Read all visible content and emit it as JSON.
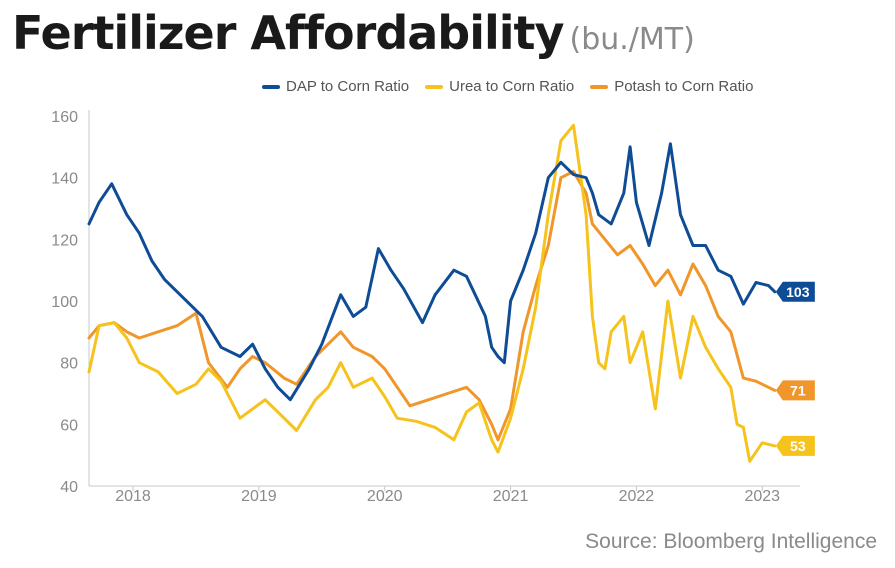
{
  "header": {
    "title": "Fertilizer Affordability",
    "subtitle": "(bu./MT)"
  },
  "source": "Source: Bloomberg Intelligence",
  "colors": {
    "dap": "#0f4c96",
    "urea": "#f5c31c",
    "potash": "#f0962a"
  },
  "chart_data": {
    "type": "line",
    "title": "Fertilizer Affordability",
    "xlabel": "",
    "ylabel": "",
    "ylim": [
      40,
      160
    ],
    "yticks": [
      40,
      60,
      80,
      100,
      120,
      140,
      160
    ],
    "xlim": [
      2017.7,
      2023.35
    ],
    "xticks": [
      {
        "value": 2018.05,
        "label": "2018"
      },
      {
        "value": 2019.05,
        "label": "2019"
      },
      {
        "value": 2020.05,
        "label": "2020"
      },
      {
        "value": 2021.05,
        "label": "2021"
      },
      {
        "value": 2022.05,
        "label": "2022"
      },
      {
        "value": 2023.05,
        "label": "2023"
      }
    ],
    "grid": false,
    "legend_position": "top",
    "series": [
      {
        "name": "DAP to Corn Ratio",
        "color": "#0f4c96",
        "end_label": "103",
        "x": [
          2017.7,
          2017.78,
          2017.88,
          2018.0,
          2018.1,
          2018.2,
          2018.3,
          2018.45,
          2018.6,
          2018.75,
          2018.9,
          2019.0,
          2019.1,
          2019.2,
          2019.3,
          2019.45,
          2019.55,
          2019.7,
          2019.8,
          2019.9,
          2020.0,
          2020.1,
          2020.2,
          2020.35,
          2020.45,
          2020.6,
          2020.7,
          2020.85,
          2020.9,
          2020.95,
          2021.0,
          2021.05,
          2021.15,
          2021.25,
          2021.35,
          2021.45,
          2021.55,
          2021.65,
          2021.7,
          2021.75,
          2021.85,
          2021.95,
          2022.0,
          2022.05,
          2022.15,
          2022.25,
          2022.32,
          2022.4,
          2022.5,
          2022.6,
          2022.7,
          2022.8,
          2022.9,
          2023.0,
          2023.1,
          2023.15
        ],
        "y": [
          125,
          132,
          138,
          128,
          122,
          113,
          107,
          101,
          95,
          85,
          82,
          86,
          78,
          72,
          68,
          78,
          86,
          102,
          95,
          98,
          117,
          110,
          104,
          93,
          102,
          110,
          108,
          95,
          85,
          82,
          80,
          100,
          110,
          122,
          140,
          145,
          141,
          140,
          135,
          128,
          125,
          135,
          150,
          132,
          118,
          135,
          151,
          128,
          118,
          118,
          110,
          108,
          99,
          106,
          105,
          103
        ]
      },
      {
        "name": "Urea to Corn Ratio",
        "color": "#f5c31c",
        "end_label": "53",
        "x": [
          2017.7,
          2017.78,
          2017.9,
          2018.0,
          2018.1,
          2018.25,
          2018.4,
          2018.55,
          2018.65,
          2018.75,
          2018.9,
          2019.0,
          2019.1,
          2019.25,
          2019.35,
          2019.5,
          2019.6,
          2019.7,
          2019.8,
          2019.95,
          2020.05,
          2020.15,
          2020.3,
          2020.45,
          2020.6,
          2020.7,
          2020.8,
          2020.9,
          2020.95,
          2021.05,
          2021.15,
          2021.25,
          2021.35,
          2021.45,
          2021.55,
          2021.65,
          2021.7,
          2021.75,
          2021.8,
          2021.85,
          2021.95,
          2022.0,
          2022.05,
          2022.1,
          2022.2,
          2022.3,
          2022.4,
          2022.5,
          2022.6,
          2022.7,
          2022.8,
          2022.85,
          2022.9,
          2022.95,
          2023.05,
          2023.15
        ],
        "y": [
          77,
          92,
          93,
          88,
          80,
          77,
          70,
          73,
          78,
          74,
          62,
          65,
          68,
          62,
          58,
          68,
          72,
          80,
          72,
          75,
          69,
          62,
          61,
          59,
          55,
          64,
          67,
          55,
          51,
          62,
          78,
          98,
          128,
          152,
          157,
          128,
          95,
          80,
          78,
          90,
          95,
          80,
          85,
          90,
          65,
          100,
          75,
          95,
          85,
          78,
          72,
          60,
          59,
          48,
          54,
          53
        ]
      },
      {
        "name": "Potash to Corn Ratio",
        "color": "#f0962a",
        "end_label": "71",
        "x": [
          2017.7,
          2017.78,
          2017.9,
          2018.0,
          2018.1,
          2018.25,
          2018.4,
          2018.55,
          2018.65,
          2018.8,
          2018.9,
          2019.0,
          2019.1,
          2019.25,
          2019.35,
          2019.5,
          2019.6,
          2019.7,
          2019.8,
          2019.95,
          2020.05,
          2020.15,
          2020.25,
          2020.4,
          2020.55,
          2020.7,
          2020.8,
          2020.9,
          2020.95,
          2021.05,
          2021.15,
          2021.25,
          2021.35,
          2021.45,
          2021.55,
          2021.65,
          2021.7,
          2021.8,
          2021.9,
          2022.0,
          2022.1,
          2022.2,
          2022.3,
          2022.4,
          2022.5,
          2022.6,
          2022.7,
          2022.8,
          2022.9,
          2023.0,
          2023.1,
          2023.15
        ],
        "y": [
          88,
          92,
          93,
          90,
          88,
          90,
          92,
          96,
          80,
          72,
          78,
          82,
          80,
          75,
          73,
          82,
          86,
          90,
          85,
          82,
          78,
          72,
          66,
          68,
          70,
          72,
          68,
          60,
          55,
          65,
          90,
          105,
          118,
          140,
          142,
          135,
          125,
          120,
          115,
          118,
          112,
          105,
          110,
          102,
          112,
          105,
          95,
          90,
          75,
          74,
          72,
          71
        ]
      }
    ]
  }
}
